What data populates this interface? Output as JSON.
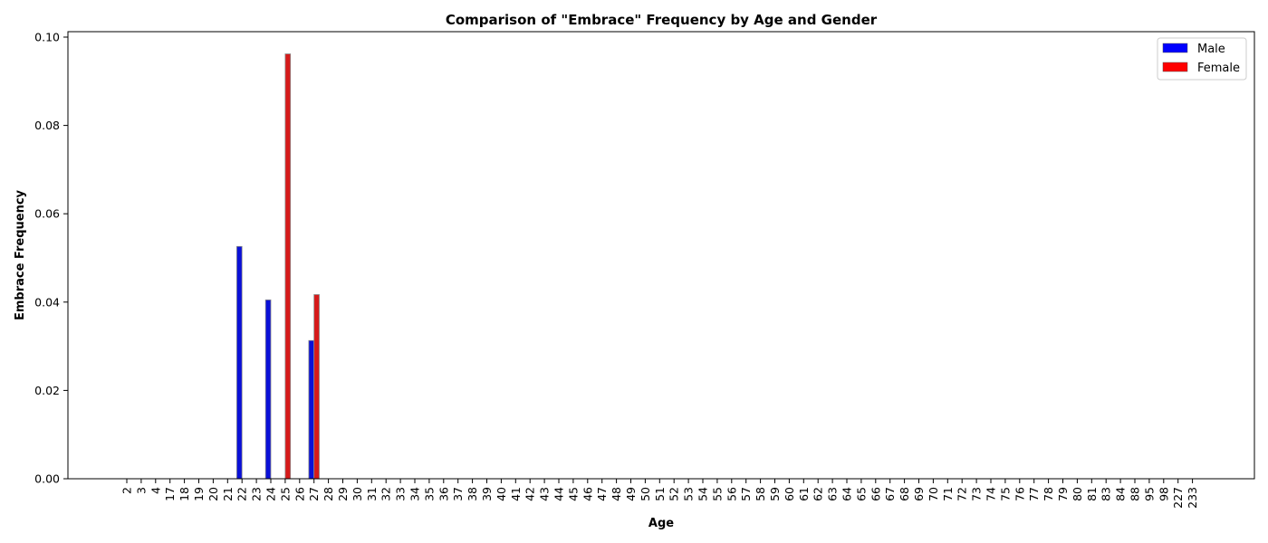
{
  "chart_data": {
    "type": "bar",
    "title": "Comparison of \"Embrace\" Frequency by Age and Gender",
    "xlabel": "Age",
    "ylabel": "Embrace Frequency",
    "ylim": [
      0,
      0.1
    ],
    "yticks": [
      "0.00",
      "0.02",
      "0.04",
      "0.06",
      "0.08",
      "0.10"
    ],
    "grid": false,
    "legend_position": "top-right",
    "categories": [
      "2",
      "3",
      "4",
      "17",
      "18",
      "19",
      "20",
      "21",
      "22",
      "23",
      "24",
      "25",
      "26",
      "27",
      "28",
      "29",
      "30",
      "31",
      "32",
      "33",
      "34",
      "35",
      "36",
      "37",
      "38",
      "39",
      "40",
      "41",
      "42",
      "43",
      "44",
      "45",
      "46",
      "47",
      "48",
      "49",
      "50",
      "51",
      "52",
      "53",
      "54",
      "55",
      "56",
      "57",
      "58",
      "59",
      "60",
      "61",
      "62",
      "63",
      "64",
      "65",
      "66",
      "67",
      "68",
      "69",
      "70",
      "71",
      "72",
      "73",
      "74",
      "75",
      "76",
      "77",
      "78",
      "79",
      "80",
      "81",
      "83",
      "84",
      "88",
      "95",
      "98",
      "227",
      "233"
    ],
    "series": [
      {
        "name": "Male",
        "color": "#0000ff",
        "values": [
          0,
          0,
          0,
          0,
          0,
          0,
          0,
          0,
          0.0526,
          0,
          0.0405,
          0,
          0,
          0.0313,
          0,
          0,
          0,
          0,
          0,
          0,
          0,
          0,
          0,
          0,
          0,
          0,
          0,
          0,
          0,
          0,
          0,
          0,
          0,
          0,
          0,
          0,
          0,
          0,
          0,
          0,
          0,
          0,
          0,
          0,
          0,
          0,
          0,
          0,
          0,
          0,
          0,
          0,
          0,
          0,
          0,
          0,
          0,
          0,
          0,
          0,
          0,
          0,
          0,
          0,
          0,
          0,
          0,
          0,
          0,
          0,
          0,
          0,
          0,
          0,
          0
        ]
      },
      {
        "name": "Female",
        "color": "#ff0000",
        "values": [
          0,
          0,
          0,
          0,
          0,
          0,
          0,
          0,
          0,
          0,
          0,
          0.0962,
          0,
          0.0417,
          0,
          0,
          0,
          0,
          0,
          0,
          0,
          0,
          0,
          0,
          0,
          0,
          0,
          0,
          0,
          0,
          0,
          0,
          0,
          0,
          0,
          0,
          0,
          0,
          0,
          0,
          0,
          0,
          0,
          0,
          0,
          0,
          0,
          0,
          0,
          0,
          0,
          0,
          0,
          0,
          0,
          0,
          0,
          0,
          0,
          0,
          0,
          0,
          0,
          0,
          0,
          0,
          0,
          0,
          0,
          0,
          0,
          0,
          0,
          0,
          0
        ]
      }
    ]
  }
}
